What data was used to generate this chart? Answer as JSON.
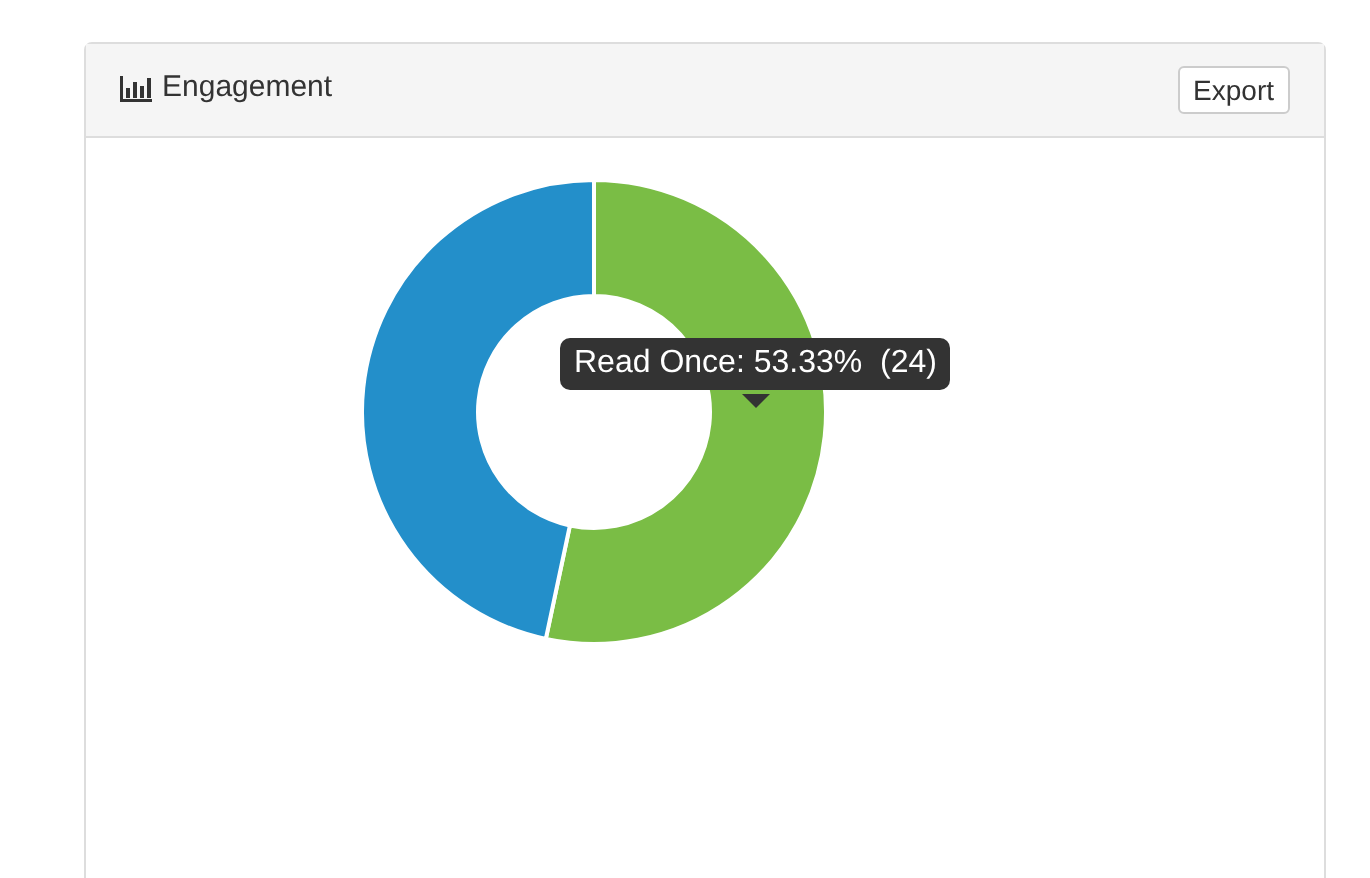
{
  "chart_data": {
    "type": "donut",
    "title": "Engagement",
    "categories": [
      "Read Once",
      null
    ],
    "values": [
      53.33,
      46.67
    ],
    "colors": [
      "#7abd45",
      "#238fca"
    ],
    "value_labels": [
      "53.33%  (24)",
      null
    ],
    "annotations": [
      "Export"
    ],
    "legend": false
  }
}
